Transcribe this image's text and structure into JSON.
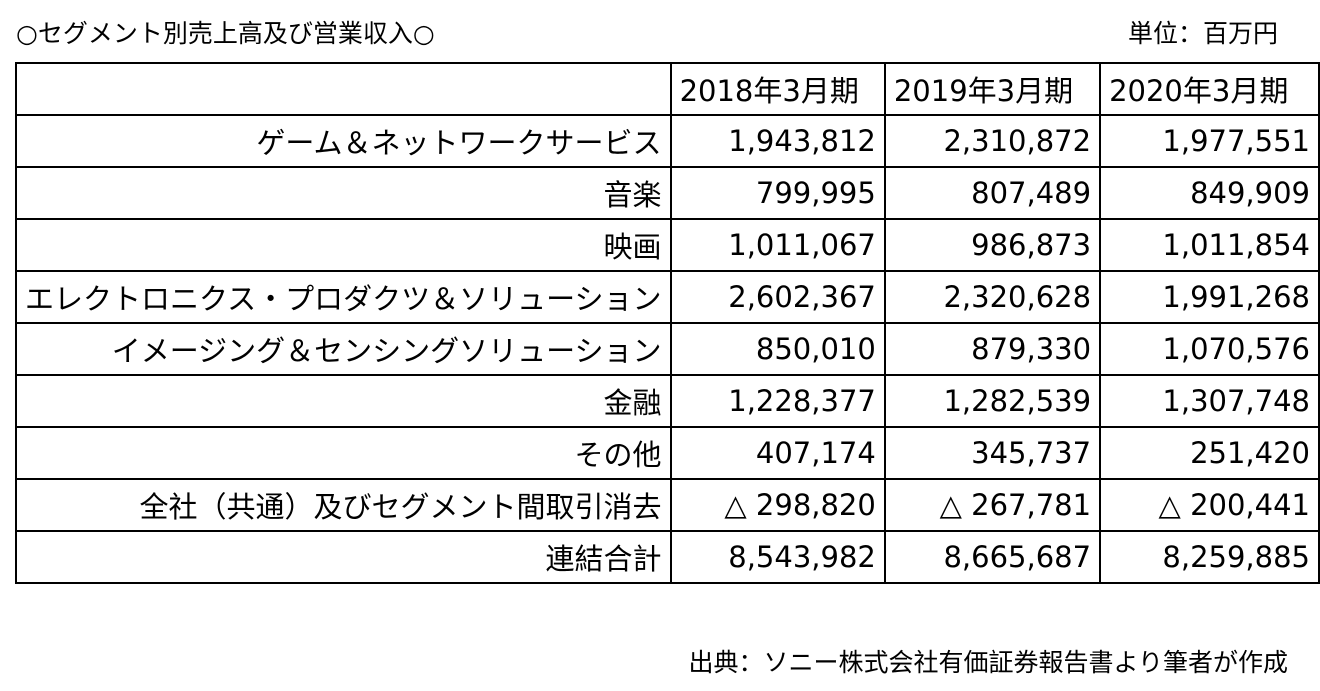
{
  "title": "○セグメント別売上高及び営業収入○",
  "unit": "単位：百万円",
  "table": {
    "headers": [
      "",
      "2018年3月期",
      "2019年3月期",
      "2020年3月期"
    ],
    "rows": [
      {
        "label": "ゲーム＆ネットワークサービス",
        "values": [
          "1,943,812",
          "2,310,872",
          "1,977,551"
        ]
      },
      {
        "label": "音楽",
        "values": [
          "799,995",
          "807,489",
          "849,909"
        ]
      },
      {
        "label": "映画",
        "values": [
          "1,011,067",
          "986,873",
          "1,011,854"
        ]
      },
      {
        "label": "エレクトロニクス・プロダクツ＆ソリューション",
        "values": [
          "2,602,367",
          "2,320,628",
          "1,991,268"
        ]
      },
      {
        "label": "イメージング＆センシングソリューション",
        "values": [
          "850,010",
          "879,330",
          "1,070,576"
        ]
      },
      {
        "label": "金融",
        "values": [
          "1,228,377",
          "1,282,539",
          "1,307,748"
        ]
      },
      {
        "label": "その他",
        "values": [
          "407,174",
          "345,737",
          "251,420"
        ]
      },
      {
        "label": "全社（共通）及びセグメント間取引消去",
        "values": [
          "△ 298,820",
          "△ 267,781",
          "△ 200,441"
        ]
      },
      {
        "label": "連結合計",
        "values": [
          "8,543,982",
          "8,665,687",
          "8,259,885"
        ]
      }
    ]
  },
  "source": "出典：ソニー株式会社有価証券報告書より筆者が作成"
}
